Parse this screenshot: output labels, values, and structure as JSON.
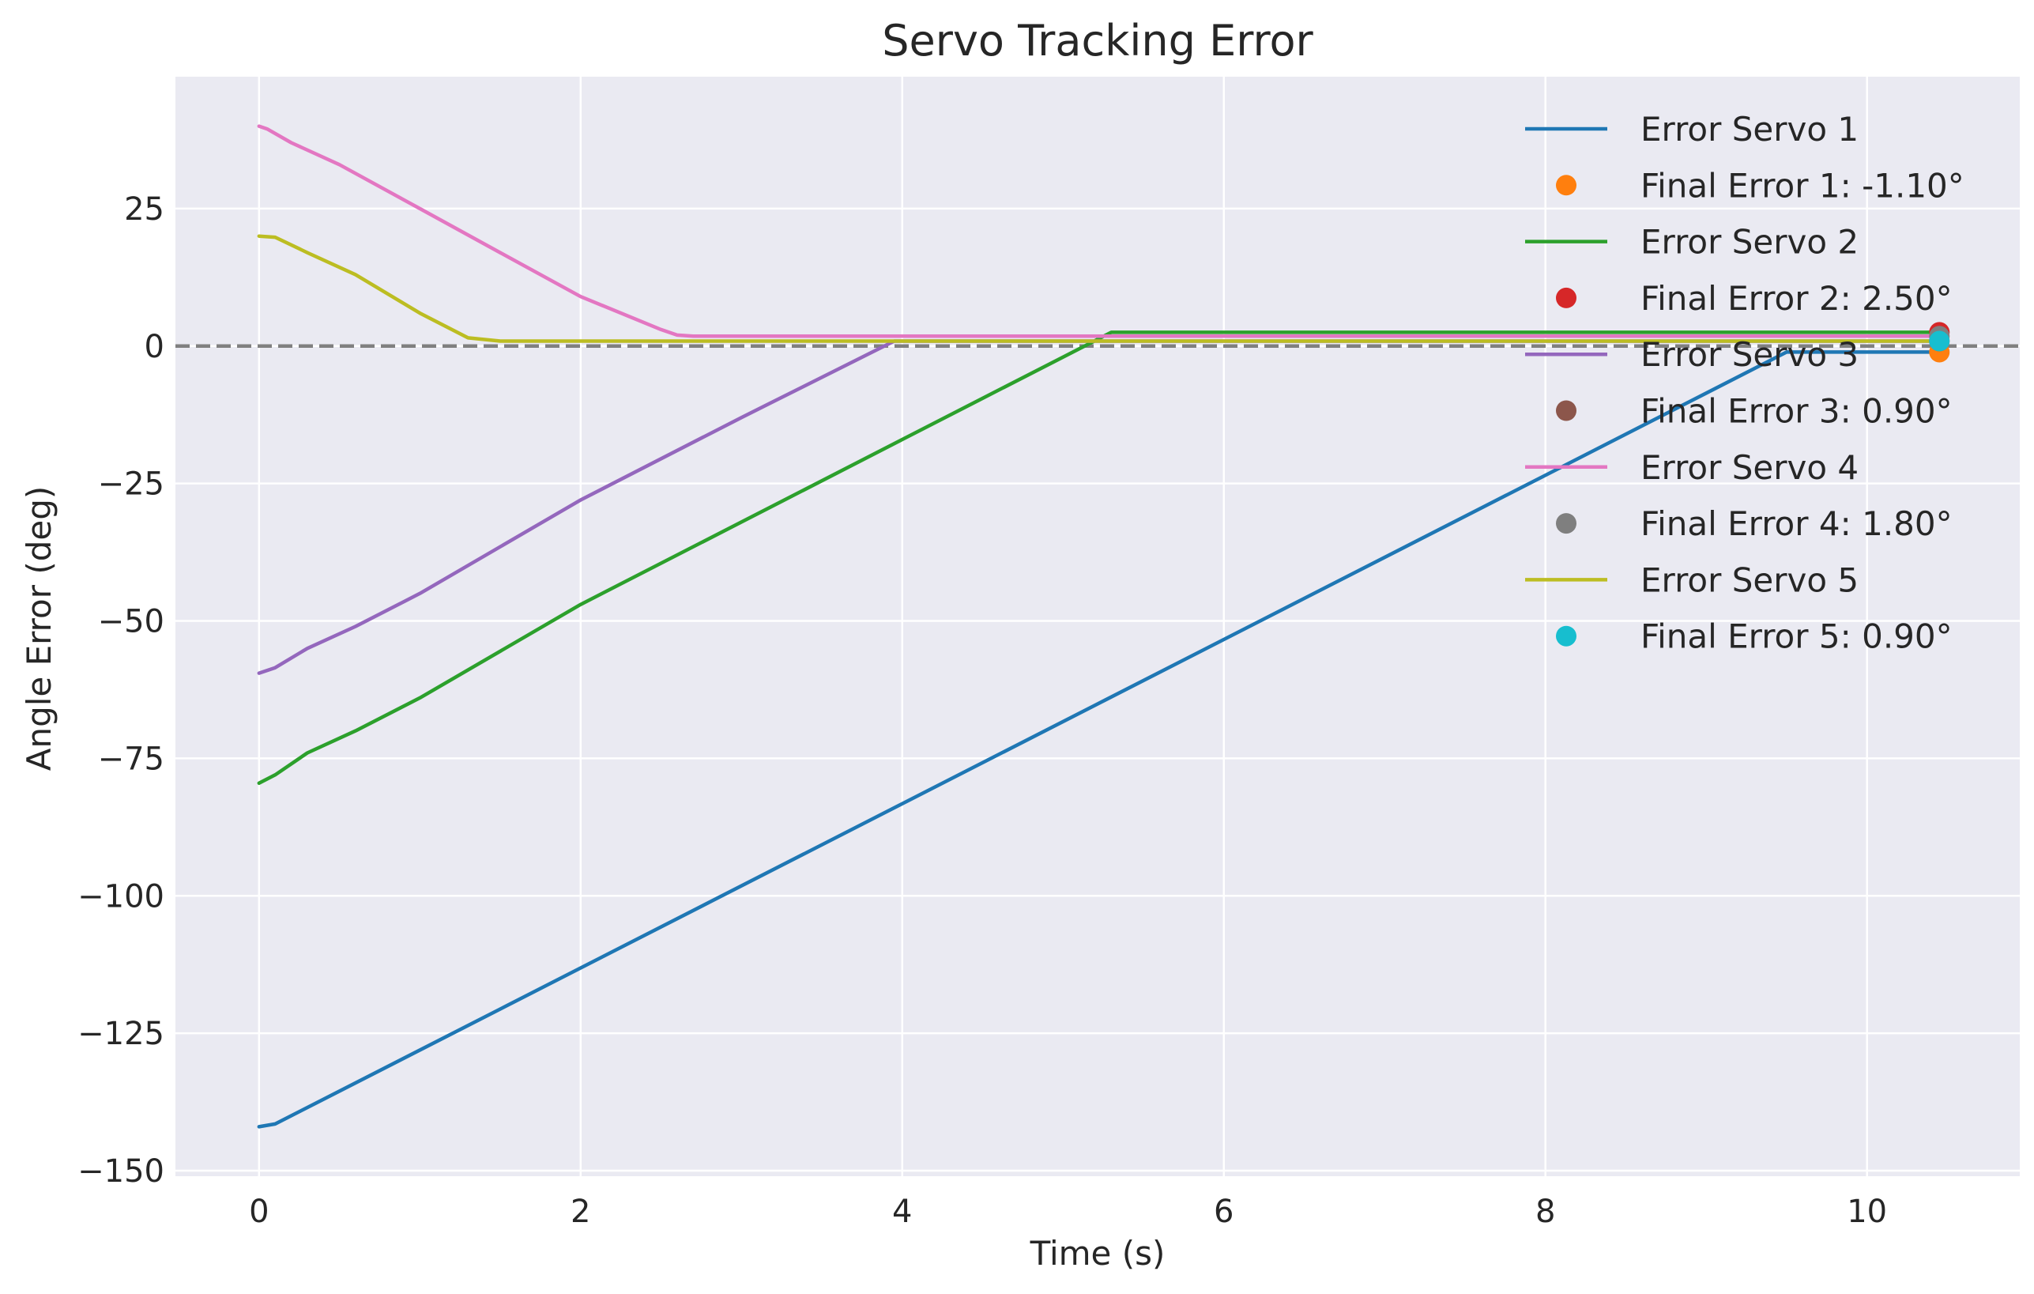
{
  "chart_data": {
    "type": "line",
    "title": "Servo Tracking Error",
    "xlabel": "Time (s)",
    "ylabel": "Angle Error (deg)",
    "xlim": [
      -0.52,
      10.95
    ],
    "ylim": [
      -151,
      49
    ],
    "xticks": [
      0,
      2,
      4,
      6,
      8,
      10
    ],
    "yticks": [
      -150,
      -125,
      -100,
      -75,
      -50,
      -25,
      0,
      25
    ],
    "grid": true,
    "legend_position": "top-right",
    "reference_line": {
      "y": 0,
      "color": "#808080",
      "style": "dashed"
    },
    "series": [
      {
        "name": "Error Servo 1",
        "color": "#1f77b4",
        "x": [
          0,
          0.1,
          9.5,
          10.45
        ],
        "y": [
          -142,
          -141.5,
          -1.1,
          -1.1
        ]
      },
      {
        "name": "Final Error 1: -1.10°",
        "marker": "point",
        "color": "#ff7f0e",
        "x": [
          10.45
        ],
        "y": [
          -1.1
        ]
      },
      {
        "name": "Error Servo 2",
        "color": "#2ca02c",
        "x": [
          0,
          0.1,
          0.3,
          0.6,
          1.0,
          2.0,
          3.0,
          4.0,
          5.0,
          5.3,
          10.45
        ],
        "y": [
          -79.5,
          -78,
          -74,
          -70,
          -64,
          -47,
          -32,
          -17,
          -2,
          2.5,
          2.5
        ]
      },
      {
        "name": "Final Error 2: 2.50°",
        "marker": "point",
        "color": "#d62728",
        "x": [
          10.45
        ],
        "y": [
          2.5
        ]
      },
      {
        "name": "Error Servo 3",
        "color": "#9467bd",
        "x": [
          0,
          0.1,
          0.3,
          0.6,
          1.0,
          2.0,
          3.0,
          3.95,
          10.45
        ],
        "y": [
          -59.5,
          -58.5,
          -55,
          -51,
          -45,
          -28,
          -13,
          0.9,
          0.9
        ]
      },
      {
        "name": "Final Error 3: 0.90°",
        "marker": "point",
        "color": "#8c564b",
        "x": [
          10.45
        ],
        "y": [
          0.9
        ]
      },
      {
        "name": "Error Servo 4",
        "color": "#e377c2",
        "x": [
          0,
          0.05,
          0.2,
          0.5,
          1.0,
          1.5,
          2.0,
          2.5,
          2.6,
          2.7,
          10.45
        ],
        "y": [
          40,
          39.5,
          37,
          33,
          25,
          17,
          9,
          3,
          2,
          1.8,
          1.8
        ]
      },
      {
        "name": "Final Error 4: 1.80°",
        "marker": "point",
        "color": "#7f7f7f",
        "x": [
          10.45
        ],
        "y": [
          1.8
        ]
      },
      {
        "name": "Error Servo 5",
        "color": "#bcbd22",
        "x": [
          0,
          0.1,
          0.3,
          0.6,
          1.0,
          1.3,
          1.5,
          10.45
        ],
        "y": [
          20,
          19.8,
          17,
          13,
          6,
          1.5,
          0.9,
          0.9
        ]
      },
      {
        "name": "Final Error 5: 0.90°",
        "marker": "point",
        "color": "#17becf",
        "x": [
          10.45
        ],
        "y": [
          0.9
        ]
      }
    ]
  }
}
